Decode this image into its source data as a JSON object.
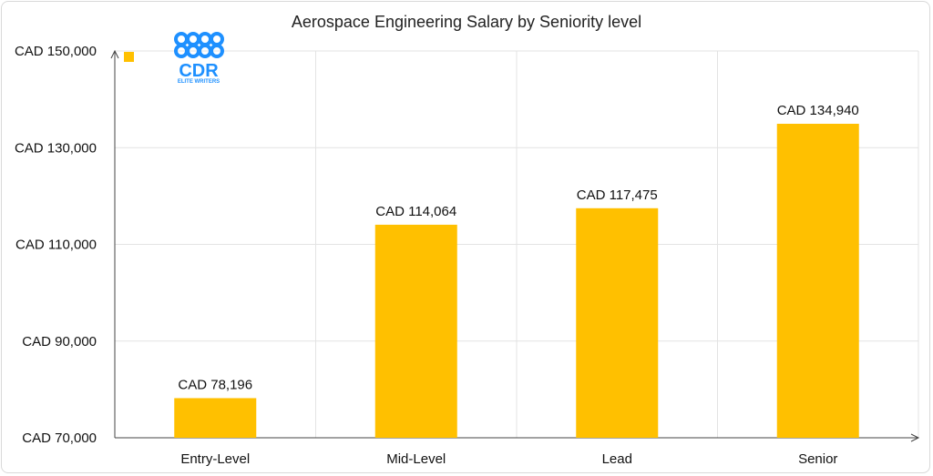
{
  "chart_data": {
    "type": "bar",
    "title": "Aerospace Engineering Salary by Seniority level",
    "categories": [
      "Entry-Level",
      "Mid-Level",
      "Lead",
      "Senior"
    ],
    "values": [
      78196,
      114064,
      117475,
      134940
    ],
    "data_labels": [
      "CAD 78,196",
      "CAD 114,064",
      "CAD 117,475",
      "CAD 134,940"
    ],
    "y_ticks": [
      70000,
      90000,
      110000,
      130000,
      150000
    ],
    "y_tick_labels": [
      "CAD 70,000",
      "CAD 90,000",
      "CAD 110,000",
      "CAD 130,000",
      "CAD 150,000"
    ],
    "ylim": [
      70000,
      150000
    ],
    "xlabel": "",
    "ylabel": "",
    "grid": "vertical",
    "legend": "top-left",
    "bar_color": "#FFC000"
  },
  "logo": {
    "mark": "CDR",
    "tagline": "ELITE WRITERS",
    "color": "#1E90FF",
    "icon": "cdr-logo-icon"
  }
}
